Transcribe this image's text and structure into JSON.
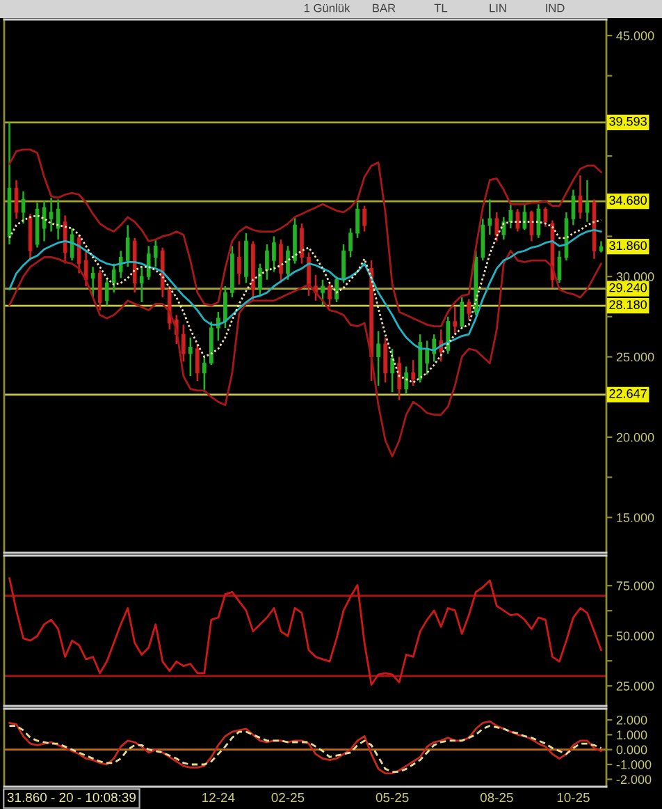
{
  "chart_data": [
    {
      "type": "candlestick",
      "categories": [
        null,
        null,
        null,
        null,
        null,
        null,
        null,
        null,
        null,
        null,
        null,
        null,
        null,
        null,
        null,
        null,
        null,
        null,
        null,
        null,
        null,
        null,
        null,
        null,
        null,
        null,
        null,
        null,
        null,
        null,
        null,
        null,
        null,
        null,
        null,
        null,
        null,
        null,
        null,
        null,
        null,
        null,
        null,
        null,
        null,
        null,
        null,
        null,
        null,
        null,
        null,
        null,
        null,
        null,
        null,
        null,
        null,
        null,
        null,
        null,
        null,
        null,
        null,
        null,
        null,
        null,
        null,
        null,
        null,
        null,
        null,
        null,
        null,
        null,
        null,
        null,
        null,
        null,
        null,
        null,
        null,
        null,
        null,
        null,
        null,
        null
      ],
      "ohlc": [
        [
          32.5,
          39.59,
          32.0,
          35.5
        ],
        [
          35.5,
          36.0,
          33.6,
          34.0
        ],
        [
          34.0,
          35.3,
          33.3,
          34.8
        ],
        [
          33.7,
          33.9,
          31.0,
          31.6
        ],
        [
          32.0,
          34.6,
          31.8,
          34.2
        ],
        [
          33.0,
          34.7,
          32.2,
          34.3
        ],
        [
          33.6,
          34.9,
          32.8,
          34.0
        ],
        [
          33.0,
          34.8,
          32.3,
          34.2
        ],
        [
          33.4,
          33.8,
          30.8,
          31.5
        ],
        [
          31.2,
          33.0,
          31.0,
          32.6
        ],
        [
          32.4,
          32.6,
          30.2,
          30.8
        ],
        [
          31.0,
          31.6,
          29.4,
          29.8
        ],
        [
          29.9,
          30.6,
          28.7,
          30.2
        ],
        [
          30.2,
          30.4,
          27.9,
          28.4
        ],
        [
          28.5,
          29.9,
          28.2,
          29.6
        ],
        [
          29.6,
          30.8,
          29.0,
          30.4
        ],
        [
          30.3,
          31.6,
          29.9,
          31.2
        ],
        [
          31.0,
          33.2,
          30.6,
          32.4
        ],
        [
          32.2,
          32.4,
          29.0,
          29.6
        ],
        [
          29.6,
          30.6,
          28.4,
          30.0
        ],
        [
          30.0,
          31.9,
          29.8,
          31.4
        ],
        [
          31.2,
          32.3,
          30.6,
          31.9
        ],
        [
          31.6,
          31.8,
          28.7,
          29.2
        ],
        [
          29.2,
          29.4,
          26.7,
          27.1
        ],
        [
          27.3,
          27.6,
          25.8,
          26.4
        ],
        [
          26.4,
          27.0,
          24.7,
          25.2
        ],
        [
          25.2,
          26.2,
          23.8,
          25.6
        ],
        [
          25.5,
          25.8,
          23.5,
          24.0
        ],
        [
          24.0,
          25.0,
          22.8,
          24.6
        ],
        [
          24.6,
          27.2,
          24.5,
          26.8
        ],
        [
          26.8,
          27.8,
          26.0,
          27.4
        ],
        [
          27.2,
          29.4,
          26.8,
          29.0
        ],
        [
          29.0,
          31.9,
          28.7,
          31.4
        ],
        [
          31.2,
          32.2,
          29.5,
          30.2
        ],
        [
          30.0,
          32.7,
          29.6,
          32.2
        ],
        [
          32.0,
          32.2,
          28.5,
          29.2
        ],
        [
          29.2,
          30.8,
          28.8,
          30.5
        ],
        [
          30.4,
          32.0,
          29.8,
          31.6
        ],
        [
          31.0,
          32.5,
          30.3,
          32.1
        ],
        [
          32.0,
          32.3,
          29.6,
          30.2
        ],
        [
          30.2,
          31.9,
          29.8,
          31.6
        ],
        [
          31.0,
          33.7,
          30.8,
          33.2
        ],
        [
          33.0,
          33.3,
          30.8,
          31.2
        ],
        [
          31.2,
          31.5,
          28.8,
          29.4
        ],
        [
          29.4,
          30.1,
          28.5,
          29.0
        ],
        [
          29.0,
          29.8,
          28.2,
          29.4
        ],
        [
          29.4,
          29.6,
          28.1,
          28.6
        ],
        [
          28.6,
          30.0,
          28.4,
          29.8
        ],
        [
          29.8,
          32.0,
          29.6,
          31.6
        ],
        [
          31.6,
          33.0,
          31.2,
          32.7
        ],
        [
          32.7,
          34.6,
          32.4,
          34.2
        ],
        [
          34.2,
          34.4,
          32.8,
          33.2
        ],
        [
          30.5,
          31.0,
          23.5,
          25.0
        ],
        [
          25.0,
          26.6,
          23.2,
          25.8
        ],
        [
          25.8,
          26.2,
          23.4,
          24.0
        ],
        [
          24.0,
          25.5,
          22.8,
          24.9
        ],
        [
          24.6,
          25.0,
          22.3,
          23.0
        ],
        [
          23.0,
          24.4,
          22.7,
          24.0
        ],
        [
          24.0,
          24.8,
          23.2,
          23.6
        ],
        [
          23.6,
          26.4,
          23.4,
          25.9
        ],
        [
          24.6,
          26.0,
          23.9,
          25.5
        ],
        [
          25.2,
          26.4,
          24.7,
          26.1
        ],
        [
          26.0,
          26.7,
          24.7,
          25.3
        ],
        [
          25.4,
          27.5,
          25.2,
          27.2
        ],
        [
          27.2,
          28.1,
          26.4,
          26.9
        ],
        [
          26.9,
          28.7,
          26.8,
          28.4
        ],
        [
          28.4,
          28.6,
          27.3,
          27.7
        ],
        [
          27.8,
          31.6,
          27.6,
          31.2
        ],
        [
          31.2,
          33.6,
          31.0,
          33.2
        ],
        [
          33.2,
          34.8,
          32.6,
          33.6
        ],
        [
          33.6,
          34.0,
          32.2,
          32.6
        ],
        [
          32.6,
          33.7,
          32.3,
          33.4
        ],
        [
          33.4,
          34.5,
          33.0,
          34.1
        ],
        [
          34.0,
          34.2,
          32.8,
          33.0
        ],
        [
          33.0,
          34.5,
          32.9,
          34.0
        ],
        [
          34.0,
          34.1,
          32.2,
          32.6
        ],
        [
          32.6,
          34.5,
          32.4,
          34.2
        ],
        [
          34.2,
          34.3,
          33.1,
          33.4
        ],
        [
          33.3,
          33.5,
          29.3,
          29.8
        ],
        [
          29.8,
          31.6,
          29.6,
          31.2
        ],
        [
          31.2,
          34.0,
          31.0,
          33.6
        ],
        [
          33.6,
          35.4,
          33.2,
          35.0
        ],
        [
          35.0,
          36.3,
          33.6,
          34.0
        ],
        [
          34.0,
          36.0,
          33.4,
          34.6
        ],
        [
          34.6,
          34.8,
          31.1,
          31.6
        ],
        [
          31.6,
          32.2,
          31.5,
          31.86
        ]
      ],
      "colors": [
        "#22b422",
        "#d21f1f",
        "#22b422",
        "#d21f1f",
        "#22b422",
        "#22b422",
        "#22b422",
        "#22b422",
        "#d21f1f",
        "#22b422",
        "#d21f1f",
        "#d21f1f",
        "#22b422",
        "#d21f1f",
        "#22b422",
        "#22b422",
        "#22b422",
        "#22b422",
        "#d21f1f",
        "#22b422",
        "#22b422",
        "#22b422",
        "#d21f1f",
        "#d21f1f",
        "#d21f1f",
        "#d21f1f",
        "#22b422",
        "#d21f1f",
        "#22b422",
        "#22b422",
        "#22b422",
        "#22b422",
        "#22b422",
        "#d21f1f",
        "#22b422",
        "#d21f1f",
        "#22b422",
        "#22b422",
        "#22b422",
        "#d21f1f",
        "#22b422",
        "#22b422",
        "#d21f1f",
        "#d21f1f",
        "#d21f1f",
        "#22b422",
        "#d21f1f",
        "#22b422",
        "#22b422",
        "#22b422",
        "#22b422",
        "#d21f1f",
        "#d21f1f",
        "#22b422",
        "#d21f1f",
        "#22b422",
        "#d21f1f",
        "#22b422",
        "#d21f1f",
        "#22b422",
        "#22b422",
        "#22b422",
        "#d21f1f",
        "#22b422",
        "#d21f1f",
        "#22b422",
        "#d21f1f",
        "#22b422",
        "#22b422",
        "#22b422",
        "#d21f1f",
        "#22b422",
        "#22b422",
        "#d21f1f",
        "#22b422",
        "#d21f1f",
        "#22b422",
        "#d21f1f",
        "#d21f1f",
        "#22b422",
        "#22b422",
        "#22b422",
        "#d21f1f",
        "#22b422",
        "#d21f1f",
        "#22b422"
      ],
      "series": [
        {
          "type": "line",
          "color": "#a81818",
          "values": [
            37.0,
            37.8,
            37.9,
            37.9,
            37.7,
            36.2,
            35.0,
            34.9,
            35.1,
            35.2,
            35.1,
            34.6,
            33.9,
            33.3,
            33.0,
            32.8,
            33.2,
            33.7,
            33.4,
            32.9,
            32.2,
            32.3,
            32.5,
            32.6,
            32.8,
            32.6,
            31.0,
            29.0,
            28.3,
            28.2,
            28.4,
            30.5,
            32.2,
            32.8,
            33.1,
            32.9,
            32.8,
            32.8,
            32.8,
            33.0,
            33.3,
            33.7,
            33.9,
            34.1,
            34.3,
            34.5,
            34.3,
            34.1,
            34.0,
            34.3,
            34.8,
            36.2,
            36.9,
            37.1,
            34.0,
            29.5,
            27.8,
            27.6,
            27.4,
            27.2,
            27.0,
            26.9,
            26.9,
            27.8,
            28.4,
            28.8,
            28.9,
            31.8,
            34.3,
            36.0,
            36.1,
            35.4,
            34.5,
            34.5,
            34.5,
            34.6,
            34.6,
            34.7,
            34.4,
            34.4,
            35.2,
            36.0,
            36.7,
            36.9,
            36.9,
            36.5
          ]
        },
        {
          "type": "line",
          "color": "#a81818",
          "values": [
            28.2,
            29.1,
            30.0,
            30.6,
            30.9,
            31.2,
            31.2,
            31.1,
            30.9,
            30.8,
            30.5,
            29.8,
            28.7,
            27.6,
            27.4,
            27.6,
            28.0,
            28.5,
            28.3,
            28.1,
            27.9,
            28.3,
            28.3,
            27.8,
            26.7,
            23.8,
            23.0,
            22.9,
            22.9,
            22.5,
            22.2,
            22.0,
            24.0,
            27.7,
            28.3,
            28.5,
            28.5,
            28.5,
            28.5,
            28.7,
            28.9,
            29.1,
            29.3,
            29.5,
            29.0,
            28.5,
            27.9,
            27.8,
            27.6,
            27.0,
            26.9,
            27.1,
            25.0,
            22.0,
            19.8,
            18.8,
            19.8,
            21.4,
            22.2,
            21.9,
            21.5,
            21.4,
            21.4,
            21.9,
            23.2,
            25.0,
            25.5,
            25.4,
            25.0,
            24.6,
            26.7,
            30.8,
            31.6,
            31.0,
            30.9,
            31.0,
            31.0,
            31.0,
            30.6,
            29.2,
            29.0,
            28.9,
            28.7,
            29.2,
            30.0,
            30.8
          ]
        },
        {
          "type": "line",
          "color": "#20b4c4",
          "values": [
            29.2,
            30.2,
            30.7,
            31.1,
            31.3,
            31.7,
            31.9,
            32.1,
            32.2,
            32.1,
            31.9,
            31.6,
            31.3,
            31.0,
            30.8,
            30.7,
            30.8,
            30.9,
            30.9,
            30.8,
            30.6,
            30.5,
            30.3,
            29.8,
            29.3,
            28.8,
            28.4,
            27.9,
            27.3,
            27.0,
            27.0,
            27.2,
            27.6,
            28.0,
            28.4,
            28.7,
            28.8,
            29.0,
            29.4,
            29.7,
            30.0,
            30.3,
            30.5,
            30.8,
            30.7,
            30.5,
            30.3,
            29.9,
            29.8,
            30.0,
            30.3,
            30.8,
            29.9,
            29.0,
            28.3,
            27.6,
            26.8,
            26.2,
            25.8,
            25.5,
            25.5,
            25.4,
            25.7,
            25.9,
            26.1,
            26.3,
            26.4,
            27.4,
            28.6,
            29.6,
            30.5,
            31.0,
            31.2,
            31.5,
            31.6,
            31.8,
            31.9,
            32.1,
            32.2,
            31.9,
            32.0,
            32.3,
            32.6,
            32.8,
            32.9,
            32.8
          ]
        },
        {
          "type": "line",
          "color": "#f0e2b0",
          "line_style": "dotted",
          "values": [
            32.4,
            33.2,
            33.5,
            33.7,
            33.8,
            33.6,
            33.3,
            33.2,
            33.1,
            33.0,
            32.6,
            31.9,
            31.2,
            30.6,
            29.9,
            29.5,
            29.6,
            29.9,
            30.4,
            30.6,
            30.6,
            30.4,
            30.0,
            29.3,
            28.7,
            27.8,
            26.7,
            25.8,
            25.0,
            25.2,
            25.5,
            26.2,
            27.3,
            28.3,
            29.1,
            29.8,
            30.1,
            30.4,
            30.5,
            30.7,
            31.0,
            31.3,
            31.6,
            31.8,
            31.2,
            30.5,
            29.6,
            29.0,
            29.3,
            29.8,
            30.3,
            31.1,
            29.9,
            28.0,
            26.4,
            25.0,
            23.8,
            23.6,
            23.4,
            23.7,
            24.0,
            24.5,
            25.1,
            25.8,
            26.4,
            26.8,
            27.0,
            28.5,
            29.9,
            31.4,
            32.5,
            33.3,
            33.4,
            33.4,
            33.4,
            33.4,
            33.4,
            33.3,
            33.1,
            32.4,
            32.4,
            32.7,
            32.9,
            33.2,
            33.4,
            33.5
          ]
        }
      ],
      "ylim": [
        12.8,
        46.0
      ],
      "yticks": [
        {
          "value": 15,
          "label": "15.000"
        },
        {
          "value": 17.5,
          "label": null
        },
        {
          "value": 20,
          "label": "20.000"
        },
        {
          "value": 22.5,
          "label": null
        },
        {
          "value": 25,
          "label": "25.000"
        },
        {
          "value": 27.5,
          "label": null
        },
        {
          "value": 30,
          "label": "30.000"
        },
        {
          "value": 32.5,
          "label": null
        },
        {
          "value": 35,
          "label": null
        },
        {
          "value": 37.5,
          "label": null
        },
        {
          "value": 40,
          "label": null
        },
        {
          "value": 42.5,
          "label": null
        },
        {
          "value": 45,
          "label": "45.000"
        }
      ],
      "ref_lines": [
        {
          "axis": "y",
          "value": 39.593,
          "label": "39.593",
          "color": "#a8a830"
        },
        {
          "axis": "y",
          "value": 34.68,
          "label": "34.680",
          "color": "#a8a830"
        },
        {
          "axis": "y",
          "value": 29.24,
          "label": "29.240",
          "color": "#a8a830"
        },
        {
          "axis": "y",
          "value": 28.18,
          "label": "28.180",
          "color": "#c8c850"
        },
        {
          "axis": "y",
          "value": 22.647,
          "label": "22.647",
          "color": "#c8c850"
        }
      ],
      "annotations": [
        "1 Günlük",
        "BAR",
        "TL",
        "LIN",
        "IND",
        {
          "text": "31.860",
          "y": 31.86
        }
      ]
    },
    {
      "type": "line",
      "categories": [
        null,
        null,
        null,
        null,
        null,
        null,
        null,
        null,
        null,
        null,
        null,
        null,
        null,
        null,
        null,
        null,
        null,
        null,
        null,
        null,
        null,
        null,
        null,
        null,
        null,
        null,
        null,
        null,
        null,
        null,
        null,
        null,
        null,
        null,
        null,
        null,
        null,
        null,
        null,
        null,
        null,
        null,
        null,
        null,
        null,
        null,
        null,
        null,
        null,
        null,
        null,
        null,
        null,
        null,
        null,
        null,
        null,
        null,
        null,
        null,
        null,
        null,
        null,
        null,
        null,
        null,
        null,
        null,
        null,
        null,
        null,
        null,
        null,
        null,
        null,
        null,
        null,
        null,
        null,
        null,
        null,
        null,
        null,
        null,
        null,
        null
      ],
      "values": [
        78.8,
        62.6,
        48.7,
        47.6,
        49.9,
        55.7,
        58.0,
        53.4,
        39.5,
        47.6,
        45.3,
        38.3,
        39.5,
        31.4,
        37.2,
        46.4,
        55.7,
        63.8,
        46.4,
        40.6,
        44.1,
        55.7,
        37.2,
        32.5,
        37.2,
        34.9,
        36.0,
        31.4,
        31.4,
        58.0,
        59.1,
        70.7,
        71.8,
        67.2,
        62.6,
        52.2,
        55.7,
        59.1,
        63.8,
        52.2,
        49.9,
        63.8,
        61.4,
        42.9,
        39.5,
        38.3,
        37.2,
        48.7,
        62.6,
        69.5,
        75.3,
        46.4,
        25.6,
        30.7,
        31.4,
        30.7,
        26.8,
        40.6,
        39.5,
        52.2,
        58.0,
        62.6,
        54.5,
        63.8,
        62.6,
        51.0,
        60.3,
        71.8,
        74.2,
        77.6,
        64.9,
        62.6,
        60.3,
        60.8,
        58.0,
        53.4,
        59.1,
        58.0,
        39.5,
        37.2,
        47.6,
        59.1,
        63.8,
        61.4,
        52.2,
        42.9
      ],
      "color": "#d01818",
      "ylim": [
        15,
        90
      ],
      "yticks": [
        {
          "value": 25,
          "label": "25.000"
        },
        {
          "value": 37.5,
          "label": null
        },
        {
          "value": 50,
          "label": "50.000"
        },
        {
          "value": 62.5,
          "label": null
        },
        {
          "value": 75,
          "label": "75.000"
        }
      ],
      "ref_lines": [
        {
          "axis": "y",
          "value": 70,
          "color": "#b01010"
        },
        {
          "axis": "y",
          "value": 30,
          "color": "#b01010"
        }
      ]
    },
    {
      "type": "line",
      "categories": [
        null,
        null,
        null,
        null,
        null,
        null,
        null,
        null,
        null,
        null,
        null,
        null,
        null,
        null,
        null,
        null,
        null,
        null,
        null,
        null,
        null,
        null,
        null,
        null,
        null,
        null,
        null,
        null,
        null,
        null,
        "12-24",
        null,
        null,
        null,
        null,
        null,
        null,
        null,
        null,
        null,
        "02-25",
        null,
        null,
        null,
        null,
        null,
        null,
        null,
        null,
        null,
        null,
        null,
        null,
        null,
        null,
        "05-25",
        null,
        null,
        null,
        null,
        null,
        null,
        null,
        null,
        null,
        null,
        null,
        null,
        null,
        null,
        "08-25",
        null,
        null,
        null,
        null,
        null,
        null,
        null,
        null,
        null,
        null,
        "10-25",
        null,
        null,
        null,
        null
      ],
      "series": [
        {
          "color": "#c8281e",
          "values": [
            1.8,
            1.7,
            0.9,
            0.4,
            0.3,
            0.4,
            0.5,
            0.3,
            0.1,
            -0.1,
            -0.3,
            -0.6,
            -0.7,
            -0.9,
            -1.0,
            -0.6,
            0.2,
            0.6,
            0.5,
            0.2,
            -0.2,
            0.0,
            -0.2,
            -0.5,
            -0.8,
            -1.1,
            -1.2,
            -1.2,
            -1.1,
            -0.5,
            0.3,
            0.9,
            1.2,
            1.3,
            1.4,
            1.0,
            0.6,
            0.5,
            0.6,
            0.6,
            0.5,
            0.6,
            0.6,
            0.4,
            -0.3,
            -0.6,
            -0.7,
            -0.6,
            -0.3,
            0.0,
            0.6,
            0.9,
            -0.3,
            -1.3,
            -1.6,
            -1.6,
            -1.4,
            -1.1,
            -0.8,
            -0.5,
            0.2,
            0.5,
            0.6,
            0.8,
            0.6,
            0.6,
            0.8,
            1.4,
            1.8,
            1.9,
            1.6,
            1.4,
            1.2,
            1.0,
            0.9,
            0.7,
            0.4,
            0.2,
            -0.3,
            -0.6,
            -0.3,
            0.3,
            0.6,
            0.6,
            0.1,
            -0.1
          ]
        },
        {
          "color": "#e6dc96",
          "line_style": "dashed",
          "values": [
            1.6,
            1.6,
            1.3,
            0.8,
            0.6,
            0.5,
            0.4,
            0.4,
            0.2,
            0.0,
            -0.2,
            -0.4,
            -0.6,
            -0.8,
            -0.9,
            -0.9,
            -0.6,
            0.0,
            0.3,
            0.3,
            0.0,
            -0.1,
            -0.2,
            -0.4,
            -0.6,
            -0.9,
            -1.0,
            -1.0,
            -1.0,
            -0.8,
            -0.3,
            0.2,
            0.8,
            1.2,
            1.2,
            1.0,
            0.8,
            0.6,
            0.6,
            0.6,
            0.5,
            0.5,
            0.5,
            0.5,
            0.2,
            -0.1,
            -0.5,
            -0.4,
            -0.3,
            -0.2,
            0.3,
            0.6,
            0.3,
            -0.5,
            -1.3,
            -1.5,
            -1.5,
            -1.3,
            -1.0,
            -0.7,
            -0.2,
            0.3,
            0.5,
            0.6,
            0.6,
            0.6,
            0.8,
            1.0,
            1.4,
            1.6,
            1.5,
            1.4,
            1.2,
            1.1,
            0.9,
            0.8,
            0.6,
            0.4,
            0.1,
            -0.1,
            -0.3,
            0.1,
            0.4,
            0.4,
            0.3,
            0.1
          ]
        }
      ],
      "ylim": [
        -2.5,
        2.75
      ],
      "yticks": [
        {
          "value": -2,
          "label": "-2.000"
        },
        {
          "value": -1,
          "label": "-1.000"
        },
        {
          "value": 0,
          "label": "0.000"
        },
        {
          "value": 1,
          "label": "1.000"
        },
        {
          "value": 2,
          "label": "2.000"
        }
      ],
      "ref_lines": [
        {
          "axis": "y",
          "value": 0,
          "color": "#c06a10"
        }
      ],
      "annotations": [
        "31.860 - 20 - 10:08:39"
      ]
    }
  ]
}
